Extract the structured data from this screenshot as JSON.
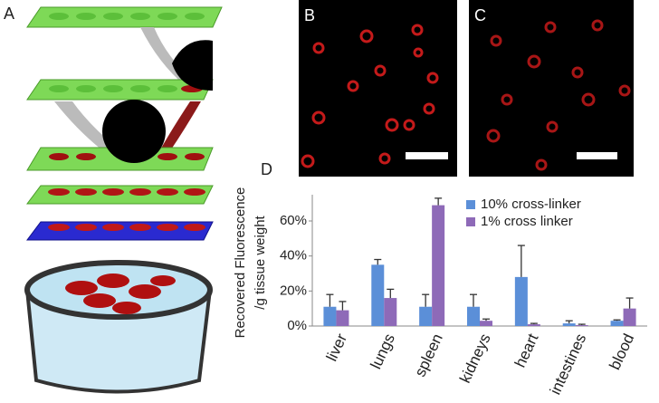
{
  "panel_labels": [
    "A",
    "B",
    "C",
    "D"
  ],
  "chart_data": {
    "type": "bar",
    "ylabel": [
      "Recovered Fluorescence",
      "/g tissue weight"
    ],
    "categories": [
      "liver",
      "lungs",
      "spleen",
      "kidneys",
      "heart",
      "intestines",
      "blood"
    ],
    "series": [
      {
        "name": "10% cross-linker",
        "color": "#5b8fd8",
        "values": [
          11,
          35,
          11,
          11,
          28,
          1.5,
          3
        ],
        "errors": [
          7,
          3,
          7,
          7,
          18,
          1.5,
          0.5
        ]
      },
      {
        "name": "1% cross linker",
        "color": "#8e6ab8",
        "values": [
          9,
          16,
          69,
          3,
          1,
          0.5,
          10
        ],
        "errors": [
          5,
          5,
          4,
          1,
          0.5,
          0.5,
          6
        ]
      }
    ],
    "ylim": [
      0,
      75
    ],
    "yticks": [
      {
        "value": 0,
        "label": "0%"
      },
      {
        "value": 20,
        "label": "20%"
      },
      {
        "value": 40,
        "label": "40%"
      },
      {
        "value": 60,
        "label": "60%"
      }
    ],
    "grid": false,
    "legend": "top-right"
  }
}
